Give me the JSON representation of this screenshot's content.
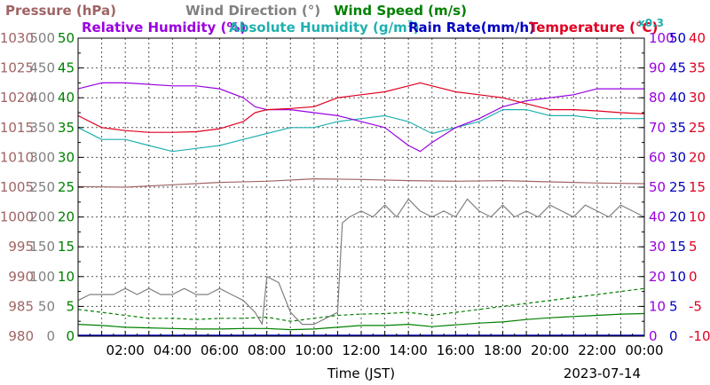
{
  "colors": {
    "pressure": "#a06464",
    "wind_direction": "#808080",
    "wind_speed": "#008000",
    "relative_humidity": "#9a00e0",
    "absolute_humidity": "#20b0b0",
    "rain_rate": "#0000c0",
    "temperature": "#e00020"
  },
  "legend": {
    "pressure": "Pressure (hPa)",
    "wind_direction": "Wind Direction (°)",
    "wind_speed": "Wind Speed (m/s)",
    "relative_humidity": "Relative Humidity (%)",
    "absolute_humidity_prefix": "Absolute Humidity (g/m",
    "absolute_humidity_sup": "3",
    "absolute_humidity_suffix": ")",
    "rain_rate": "Rain Rate(mm/h)",
    "temperature": "Temperature (°C)",
    "rain_multiplier": "x0.3"
  },
  "x_axis_label": "Time (JST)",
  "date_label": "2023-07-14",
  "chart_data": {
    "type": "line",
    "x": {
      "unit": "hour",
      "range": [
        0,
        24
      ],
      "tick_values": [
        2,
        4,
        6,
        8,
        10,
        12,
        14,
        16,
        18,
        20,
        22,
        24
      ],
      "tick_labels": [
        "02:00",
        "04:00",
        "06:00",
        "08:00",
        "10:00",
        "12:00",
        "14:00",
        "16:00",
        "18:00",
        "20:00",
        "22:00",
        "00:00"
      ],
      "grid": true
    },
    "y_axes": [
      {
        "quantity": "pressure",
        "range": [
          980,
          1030
        ],
        "ticks": [
          "980",
          "985",
          "990",
          "995",
          "1000",
          "1005",
          "1010",
          "1015",
          "1020",
          "1025",
          "1030"
        ]
      },
      {
        "quantity": "wind_direction",
        "range": [
          0,
          500
        ],
        "ticks": [
          "0",
          "50",
          "100",
          "150",
          "200",
          "250",
          "300",
          "350",
          "400",
          "450",
          "500"
        ]
      },
      {
        "quantity": "wind_speed",
        "range": [
          0,
          50
        ],
        "ticks": [
          "0",
          "5",
          "10",
          "15",
          "20",
          "25",
          "30",
          "35",
          "40",
          "45",
          "50"
        ]
      },
      {
        "quantity": "relative_humidity",
        "range": [
          0,
          100
        ],
        "ticks": [
          "0",
          "10",
          "20",
          "30",
          "40",
          "50",
          "60",
          "70",
          "80",
          "90",
          "100"
        ]
      },
      {
        "quantity": "absolute_humidity_and_rain_rate",
        "range": [
          0,
          50
        ],
        "ticks": [
          "0",
          "5",
          "10",
          "15",
          "20",
          "25",
          "30",
          "35",
          "40",
          "45",
          "50"
        ]
      },
      {
        "quantity": "temperature",
        "range": [
          -10,
          40
        ],
        "ticks": [
          "-10",
          "-5",
          "0",
          "5",
          "10",
          "15",
          "20",
          "25",
          "30",
          "35",
          "40"
        ]
      }
    ],
    "series": [
      {
        "name": "Pressure (hPa)",
        "color": "#a06464",
        "style": "solid",
        "x": [
          0,
          2,
          4,
          6,
          8,
          10,
          12,
          14,
          16,
          18,
          20,
          22,
          24
        ],
        "y": [
          1005.1,
          1005.0,
          1005.4,
          1005.8,
          1006.0,
          1006.4,
          1006.3,
          1006.1,
          1006.0,
          1006.1,
          1005.9,
          1005.7,
          1005.6
        ]
      },
      {
        "name": "Relative Humidity (%)",
        "color": "#9a00e0",
        "style": "solid",
        "x": [
          0,
          1,
          2,
          4,
          5,
          6,
          7,
          7.5,
          8,
          9,
          10,
          11,
          12,
          13,
          14,
          14.5,
          15,
          16,
          17,
          17.5,
          18,
          19,
          20,
          21,
          22,
          23,
          24
        ],
        "y": [
          83,
          85,
          85,
          84,
          84,
          83,
          80,
          77,
          76,
          76,
          75,
          74,
          72,
          70,
          64,
          62,
          65,
          70,
          73,
          75,
          77,
          79,
          80,
          81,
          83,
          83,
          83
        ]
      },
      {
        "name": "Absolute Humidity (g/m³)",
        "color": "#20b0b0",
        "style": "solid",
        "x": [
          0,
          1,
          2,
          3,
          4,
          5,
          6,
          7,
          8,
          9,
          10,
          11,
          12,
          13,
          14,
          15,
          16,
          17,
          18,
          19,
          20,
          21,
          22,
          23,
          24
        ],
        "y": [
          35,
          33,
          33,
          32,
          31,
          31.5,
          32,
          33,
          34,
          35,
          35,
          36,
          36.5,
          37,
          36,
          34,
          35,
          36,
          38,
          38,
          37,
          37,
          36.5,
          36.5,
          36.5
        ]
      },
      {
        "name": "Temperature (°C)",
        "color": "#e00020",
        "style": "solid",
        "x": [
          0,
          1,
          2,
          3,
          4,
          5,
          6,
          7,
          7.5,
          8,
          9,
          10,
          11,
          12,
          13,
          14,
          14.5,
          15,
          16,
          17,
          18,
          19,
          20,
          21,
          22,
          23,
          24
        ],
        "y": [
          27,
          25,
          24.5,
          24.2,
          24.2,
          24.3,
          24.8,
          26,
          27.5,
          28,
          28.2,
          28.5,
          30,
          30.5,
          31,
          32,
          32.5,
          32,
          31,
          30.5,
          30,
          29,
          28,
          28,
          27.8,
          27.5,
          27.3
        ]
      },
      {
        "name": "Wind Direction (°)",
        "color": "#808080",
        "style": "solid",
        "x": [
          0,
          0.5,
          1,
          1.5,
          2,
          2.5,
          3,
          3.5,
          4,
          4.5,
          5,
          5.5,
          6,
          6.5,
          7,
          7.5,
          7.8,
          8,
          8.5,
          9,
          9.5,
          10,
          10.5,
          11,
          11.2,
          11.5,
          12,
          12.5,
          13,
          13.5,
          14,
          14.5,
          15,
          15.5,
          16,
          16.5,
          17,
          17.5,
          18,
          18.5,
          19,
          19.5,
          20,
          20.5,
          21,
          21.5,
          22,
          22.5,
          23,
          23.5,
          24
        ],
        "y": [
          60,
          70,
          70,
          70,
          80,
          70,
          80,
          70,
          70,
          80,
          70,
          70,
          80,
          70,
          60,
          40,
          20,
          100,
          90,
          40,
          20,
          20,
          30,
          40,
          190,
          200,
          210,
          200,
          220,
          200,
          230,
          210,
          200,
          210,
          200,
          230,
          210,
          200,
          220,
          200,
          210,
          200,
          220,
          210,
          200,
          220,
          210,
          200,
          220,
          210,
          200
        ]
      },
      {
        "name": "Wind Speed (m/s)",
        "color": "#008000",
        "style": "solid",
        "x": [
          0,
          1,
          2,
          3,
          4,
          5,
          6,
          7,
          8,
          9,
          10,
          11,
          12,
          13,
          14,
          15,
          16,
          17,
          18,
          19,
          20,
          21,
          22,
          23,
          24
        ],
        "y": [
          2,
          1.8,
          1.5,
          1.4,
          1.3,
          1.2,
          1.2,
          1.3,
          1.3,
          1.1,
          1.2,
          1.5,
          1.8,
          1.8,
          2,
          1.6,
          1.9,
          2.2,
          2.4,
          2.8,
          3.1,
          3.3,
          3.5,
          3.7,
          3.8
        ]
      },
      {
        "name": "Wind Speed gust (m/s)",
        "color": "#008000",
        "style": "dashed",
        "x": [
          0,
          1,
          2,
          3,
          4,
          5,
          6,
          7,
          8,
          9,
          10,
          11,
          12,
          13,
          14,
          15,
          16,
          17,
          18,
          19,
          20,
          21,
          22,
          23,
          24
        ],
        "y": [
          4.5,
          4,
          3.5,
          3,
          3,
          2.8,
          3,
          3,
          3.2,
          2.5,
          3,
          3.5,
          3.7,
          3.8,
          4,
          3.5,
          4,
          4.5,
          5,
          5.5,
          6,
          6.5,
          7,
          7.5,
          8
        ]
      }
    ]
  }
}
